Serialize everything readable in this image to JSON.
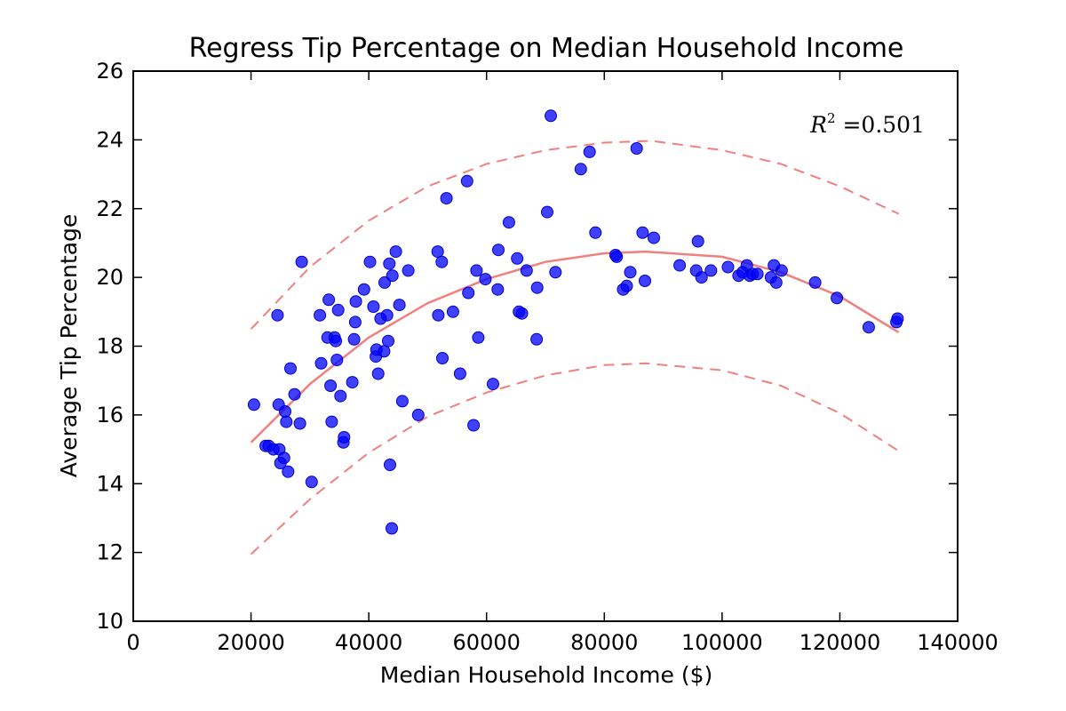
{
  "chart_data": {
    "type": "scatter",
    "title": "Regress Tip Percentage on Median Household Income",
    "xlabel": "Median Household Income ($)",
    "ylabel": "Average Tip Percentage",
    "xlim": [
      0,
      140000
    ],
    "ylim": [
      10,
      26
    ],
    "x_ticks": [
      0,
      20000,
      40000,
      60000,
      80000,
      100000,
      120000,
      140000
    ],
    "x_tick_labels": [
      "0",
      "20000",
      "40000",
      "60000",
      "80000",
      "100000",
      "120000",
      "140000"
    ],
    "y_ticks": [
      10,
      12,
      14,
      16,
      18,
      20,
      22,
      24,
      26
    ],
    "y_tick_labels": [
      "10",
      "12",
      "14",
      "16",
      "18",
      "20",
      "22",
      "24",
      "26"
    ],
    "grid": false,
    "annotation": {
      "base": "R",
      "sup": "2",
      "text": " =0.501"
    },
    "colors": {
      "points": "#0000ff",
      "fit": "#f08080",
      "axes": "#000000"
    },
    "points": [
      [
        20500,
        16.3
      ],
      [
        22500,
        15.1
      ],
      [
        23000,
        15.1
      ],
      [
        23800,
        15.0
      ],
      [
        24500,
        18.9
      ],
      [
        24700,
        16.3
      ],
      [
        24800,
        15.0
      ],
      [
        25000,
        14.6
      ],
      [
        25600,
        14.75
      ],
      [
        25800,
        16.1
      ],
      [
        26000,
        15.8
      ],
      [
        26300,
        14.35
      ],
      [
        26700,
        17.35
      ],
      [
        27400,
        16.6
      ],
      [
        28300,
        15.75
      ],
      [
        28600,
        20.45
      ],
      [
        30300,
        14.05
      ],
      [
        31700,
        18.9
      ],
      [
        31900,
        17.5
      ],
      [
        33000,
        18.25
      ],
      [
        33200,
        19.35
      ],
      [
        33500,
        16.85
      ],
      [
        33700,
        15.8
      ],
      [
        34200,
        18.25
      ],
      [
        34400,
        18.15
      ],
      [
        34600,
        17.6
      ],
      [
        34800,
        19.05
      ],
      [
        35200,
        16.55
      ],
      [
        35700,
        15.2
      ],
      [
        35800,
        15.35
      ],
      [
        37200,
        16.95
      ],
      [
        37500,
        18.2
      ],
      [
        37700,
        18.7
      ],
      [
        37800,
        19.3
      ],
      [
        39200,
        19.65
      ],
      [
        40200,
        20.45
      ],
      [
        40800,
        19.15
      ],
      [
        41200,
        17.7
      ],
      [
        41300,
        17.9
      ],
      [
        41600,
        17.2
      ],
      [
        42000,
        18.8
      ],
      [
        42600,
        17.85
      ],
      [
        42700,
        19.85
      ],
      [
        43100,
        18.9
      ],
      [
        43300,
        18.15
      ],
      [
        43500,
        20.4
      ],
      [
        43600,
        14.55
      ],
      [
        43900,
        12.7
      ],
      [
        44000,
        20.05
      ],
      [
        44600,
        20.75
      ],
      [
        45200,
        19.2
      ],
      [
        45700,
        16.4
      ],
      [
        46700,
        20.2
      ],
      [
        48400,
        16.0
      ],
      [
        51700,
        20.75
      ],
      [
        51800,
        18.9
      ],
      [
        52400,
        20.45
      ],
      [
        52500,
        17.65
      ],
      [
        53200,
        22.3
      ],
      [
        54300,
        19.0
      ],
      [
        55500,
        17.2
      ],
      [
        56700,
        22.8
      ],
      [
        56900,
        19.55
      ],
      [
        57800,
        15.7
      ],
      [
        58300,
        20.2
      ],
      [
        58600,
        18.25
      ],
      [
        59800,
        19.95
      ],
      [
        61100,
        16.9
      ],
      [
        61900,
        19.65
      ],
      [
        62000,
        20.8
      ],
      [
        63800,
        21.6
      ],
      [
        65200,
        20.55
      ],
      [
        65500,
        19.0
      ],
      [
        66000,
        18.95
      ],
      [
        66800,
        20.2
      ],
      [
        68500,
        18.2
      ],
      [
        68600,
        19.7
      ],
      [
        70300,
        21.9
      ],
      [
        70900,
        24.7
      ],
      [
        71700,
        20.15
      ],
      [
        76000,
        23.15
      ],
      [
        77500,
        23.65
      ],
      [
        78500,
        21.3
      ],
      [
        81900,
        20.65
      ],
      [
        82100,
        20.6
      ],
      [
        83200,
        19.65
      ],
      [
        83800,
        19.75
      ],
      [
        84400,
        20.15
      ],
      [
        85500,
        23.75
      ],
      [
        86500,
        21.3
      ],
      [
        86900,
        19.9
      ],
      [
        88400,
        21.15
      ],
      [
        92800,
        20.35
      ],
      [
        95600,
        20.2
      ],
      [
        95900,
        21.05
      ],
      [
        96500,
        20.0
      ],
      [
        98100,
        20.2
      ],
      [
        101000,
        20.3
      ],
      [
        102800,
        20.05
      ],
      [
        103500,
        20.15
      ],
      [
        104200,
        20.35
      ],
      [
        104700,
        20.05
      ],
      [
        105200,
        20.1
      ],
      [
        106000,
        20.1
      ],
      [
        108300,
        20.0
      ],
      [
        108800,
        20.35
      ],
      [
        109200,
        19.85
      ],
      [
        110100,
        20.2
      ],
      [
        115800,
        19.85
      ],
      [
        119500,
        19.4
      ],
      [
        124900,
        18.55
      ],
      [
        129600,
        18.7
      ],
      [
        129800,
        18.8
      ]
    ],
    "fit": {
      "x": [
        20000,
        30000,
        40000,
        50000,
        60000,
        70000,
        80000,
        87000,
        100000,
        110000,
        120000,
        130000
      ],
      "y": [
        15.2,
        16.9,
        18.25,
        19.25,
        19.95,
        20.45,
        20.7,
        20.75,
        20.6,
        20.15,
        19.45,
        18.4
      ]
    },
    "upper_band": {
      "x": [
        20000,
        30000,
        40000,
        50000,
        60000,
        70000,
        80000,
        88000,
        100000,
        110000,
        120000,
        130000
      ],
      "y": [
        18.5,
        20.3,
        21.65,
        22.65,
        23.3,
        23.7,
        23.92,
        23.97,
        23.7,
        23.3,
        22.65,
        21.85
      ]
    },
    "lower_band": {
      "x": [
        20000,
        30000,
        40000,
        50000,
        60000,
        70000,
        80000,
        87000,
        100000,
        110000,
        120000,
        130000
      ],
      "y": [
        11.95,
        13.55,
        14.9,
        15.95,
        16.65,
        17.15,
        17.45,
        17.5,
        17.3,
        16.85,
        16.05,
        14.95
      ]
    }
  }
}
